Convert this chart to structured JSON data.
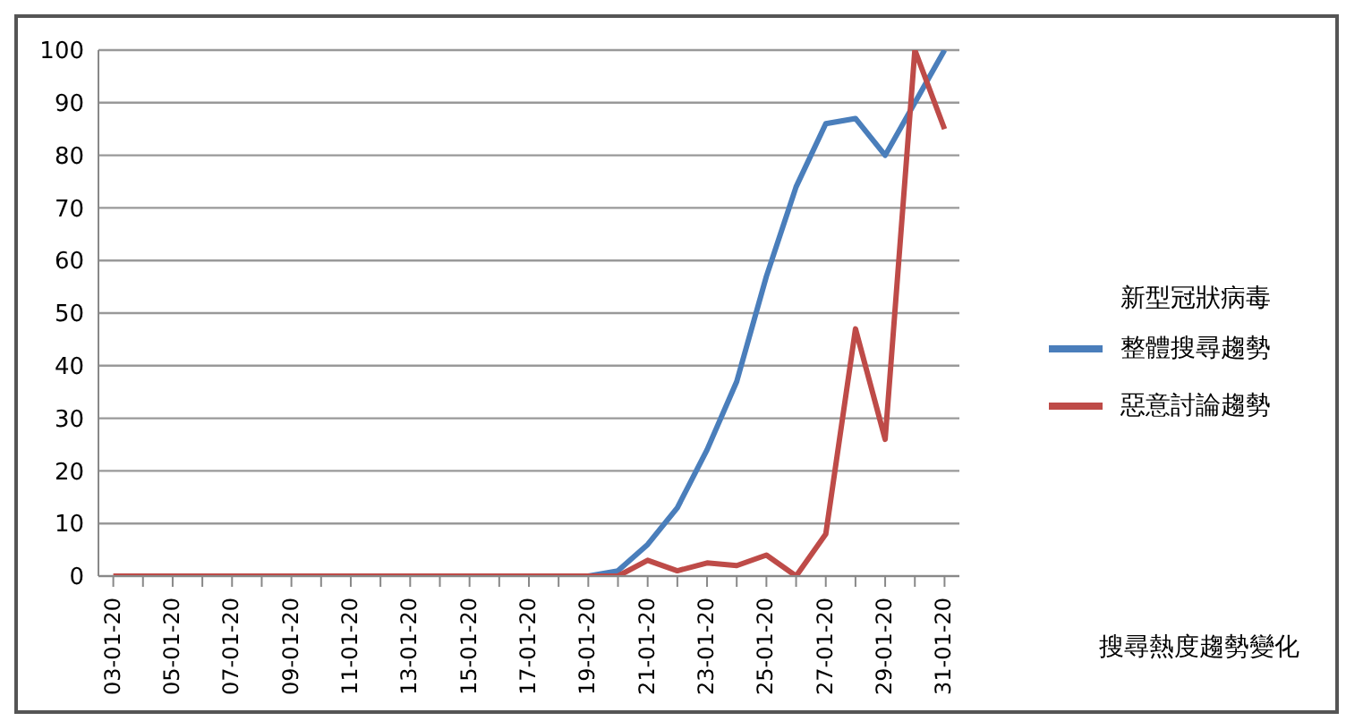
{
  "chart_data": {
    "type": "line",
    "categories": [
      "03-01-20",
      null,
      "05-01-20",
      null,
      "07-01-20",
      null,
      "09-01-20",
      null,
      "11-01-20",
      null,
      "13-01-20",
      null,
      "15-01-20",
      null,
      "17-01-20",
      null,
      "19-01-20",
      null,
      "21-01-20",
      null,
      "23-01-20",
      null,
      "25-01-20",
      null,
      "27-01-20",
      null,
      "29-01-20",
      null,
      "31-01-20"
    ],
    "series": [
      {
        "name": "整體搜尋趨勢",
        "color": "#4a7ebb",
        "values": [
          null,
          null,
          null,
          null,
          null,
          null,
          null,
          null,
          null,
          null,
          null,
          null,
          null,
          null,
          null,
          null,
          0,
          1,
          6,
          13,
          24,
          37,
          57,
          74,
          86,
          87,
          80,
          90,
          100
        ]
      },
      {
        "name": "惡意討論趨勢",
        "color": "#be4b48",
        "values": [
          0,
          0,
          0,
          0,
          0,
          0,
          0,
          0,
          0,
          0,
          0,
          0,
          0,
          0,
          0,
          0,
          0,
          0,
          3,
          1,
          2.5,
          2,
          4,
          0,
          8,
          47,
          26,
          100,
          85
        ]
      }
    ],
    "ylim": [
      0,
      100
    ],
    "yticks": [
      0,
      10,
      20,
      30,
      40,
      50,
      60,
      70,
      80,
      90,
      100
    ],
    "grid": "y",
    "legend": "right",
    "legend_title": "新型冠狀病毒",
    "marker": "none",
    "line_style": "solid",
    "annotations": [
      "搜尋熱度趨勢變化"
    ]
  }
}
